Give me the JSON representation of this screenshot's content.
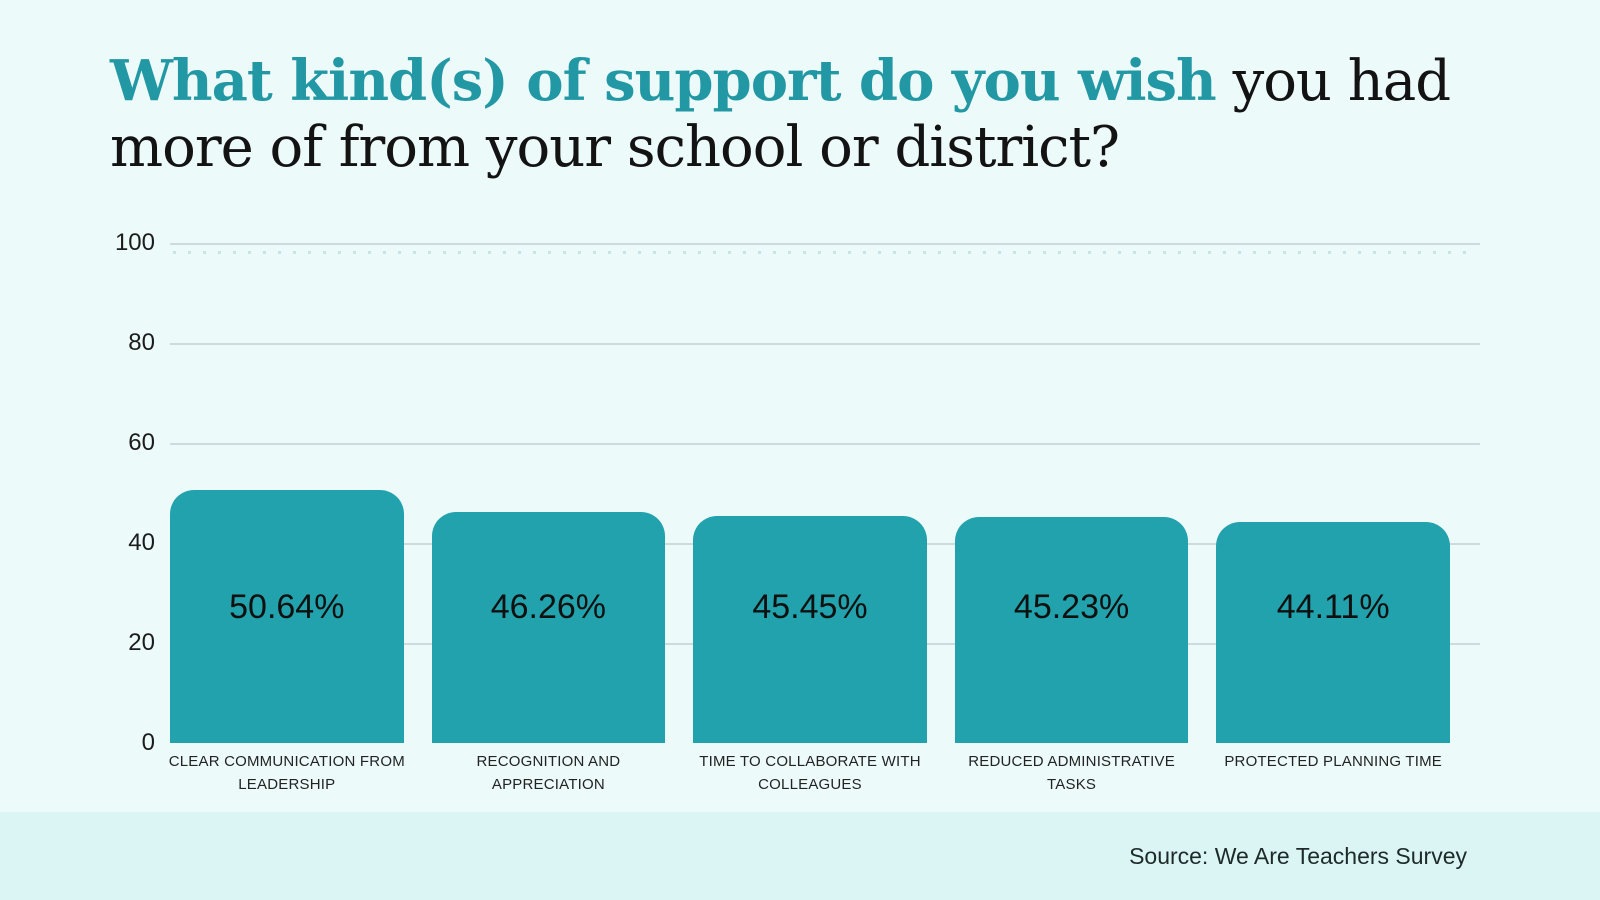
{
  "page": {
    "background_color": "#edfafa",
    "footer_background_color": "#dbf5f5"
  },
  "title": {
    "accent": "What kind(s) of support do you wish",
    "rest_line1": "you had",
    "rest_line2": "more of from your school or district?",
    "accent_color": "#2398a5",
    "text_color": "#131313"
  },
  "chart_data": {
    "type": "bar",
    "title": "What kind(s) of support do you wish you had more of from your school or district?",
    "categories": [
      "CLEAR COMMUNICATION FROM LEADERSHIP",
      "RECOGNITION AND APPRECIATION",
      "TIME TO COLLABORATE WITH COLLEAGUES",
      "REDUCED ADMINISTRATIVE TASKS",
      "PROTECTED PLANNING TIME"
    ],
    "values": [
      50.64,
      46.26,
      45.45,
      45.23,
      44.11
    ],
    "value_labels": [
      "50.64%",
      "46.26%",
      "45.45%",
      "45.23%",
      "44.11%"
    ],
    "xlabel": "",
    "ylabel": "",
    "ylim": [
      0,
      100
    ],
    "y_ticks": [
      100,
      80,
      60,
      40,
      20,
      0
    ],
    "grid": true,
    "legend": false,
    "bar_color": "#21a2ac",
    "gridline_color": "#cfdadd",
    "value_label_color": "#101010"
  },
  "footer": {
    "source": "Source: We Are Teachers Survey"
  }
}
